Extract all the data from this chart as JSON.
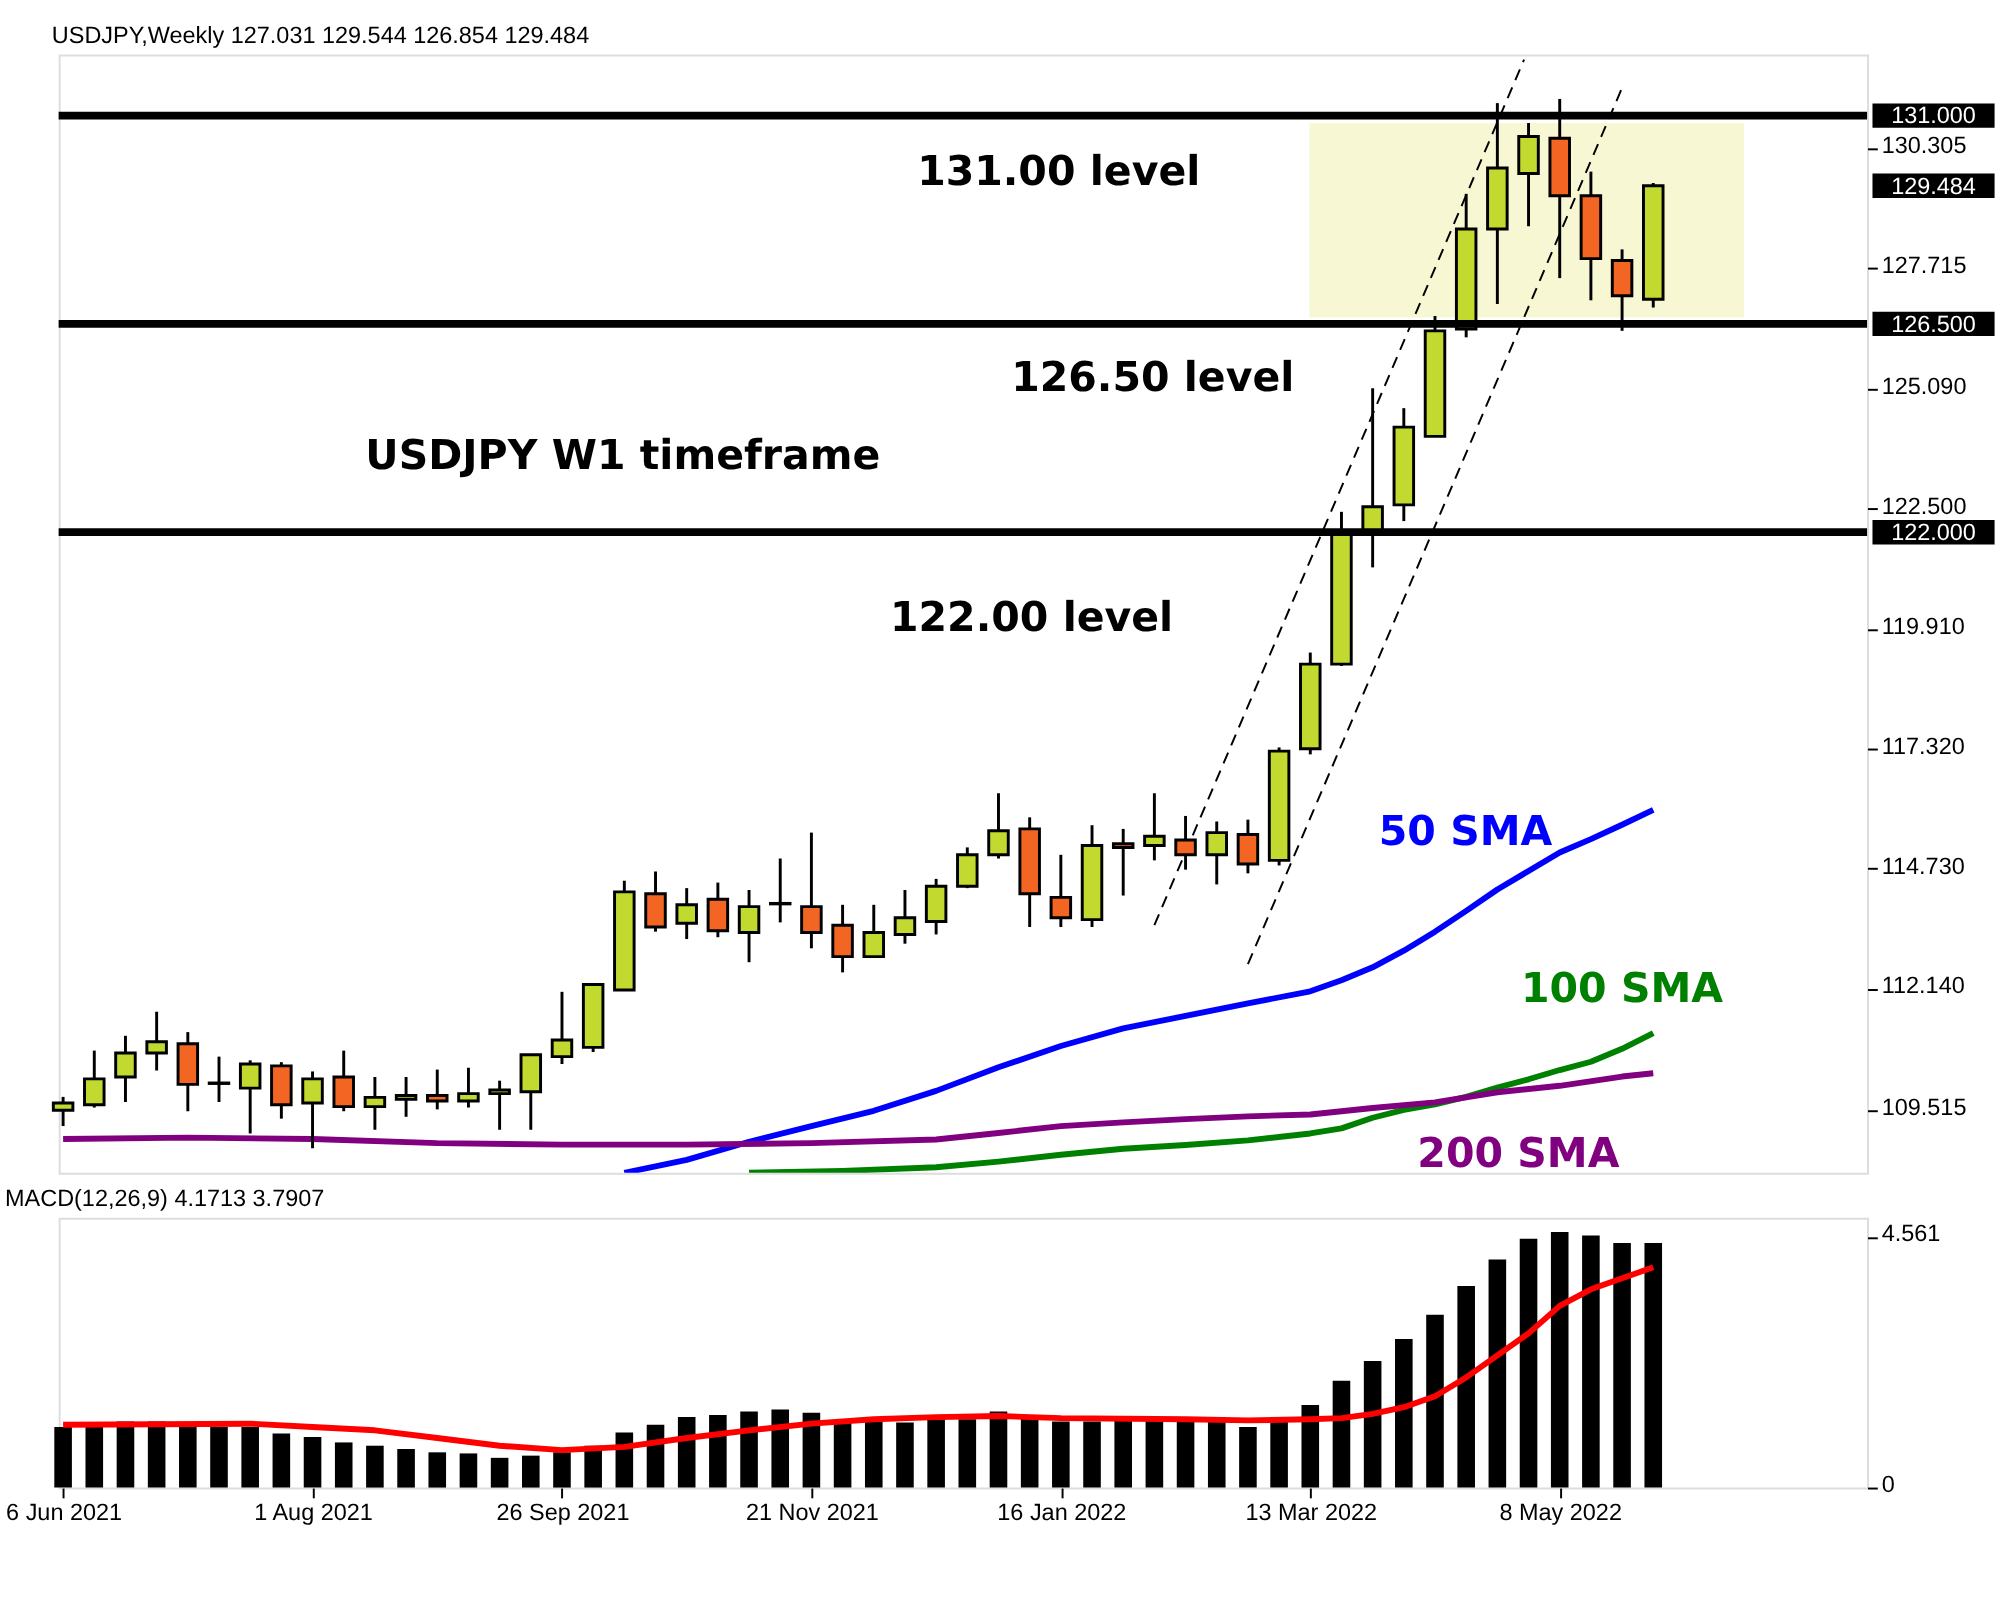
{
  "chart_data": [
    {
      "type": "candlestick",
      "title": "USDJPY,Weekly  127.031 129.544 126.854 129.484",
      "x": [
        "2021-06-06",
        "2021-06-13",
        "2021-06-20",
        "2021-06-27",
        "2021-07-04",
        "2021-07-11",
        "2021-07-18",
        "2021-07-25",
        "2021-08-01",
        "2021-08-08",
        "2021-08-15",
        "2021-08-22",
        "2021-08-29",
        "2021-09-05",
        "2021-09-12",
        "2021-09-19",
        "2021-09-26",
        "2021-10-03",
        "2021-10-10",
        "2021-10-17",
        "2021-10-24",
        "2021-10-31",
        "2021-11-07",
        "2021-11-14",
        "2021-11-21",
        "2021-11-28",
        "2021-12-05",
        "2021-12-12",
        "2021-12-19",
        "2021-12-26",
        "2022-01-02",
        "2022-01-09",
        "2022-01-16",
        "2022-01-23",
        "2022-01-30",
        "2022-02-06",
        "2022-02-13",
        "2022-02-20",
        "2022-02-27",
        "2022-03-06",
        "2022-03-13",
        "2022-03-20",
        "2022-03-27",
        "2022-04-03",
        "2022-04-10",
        "2022-04-17",
        "2022-04-24",
        "2022-05-01",
        "2022-05-08",
        "2022-05-15",
        "2022-05-22",
        "2022-05-29"
      ],
      "ohlc": [
        [
          109.51,
          109.8,
          109.17,
          109.67
        ],
        [
          109.63,
          110.8,
          109.57,
          110.19
        ],
        [
          110.23,
          111.12,
          109.69,
          110.75
        ],
        [
          110.75,
          111.64,
          110.37,
          110.99
        ],
        [
          110.95,
          111.2,
          109.49,
          110.07
        ],
        [
          110.09,
          110.67,
          109.69,
          110.1
        ],
        [
          109.99,
          110.59,
          109.01,
          110.51
        ],
        [
          110.47,
          110.55,
          109.33,
          109.63
        ],
        [
          109.67,
          110.35,
          108.69,
          110.19
        ],
        [
          110.23,
          110.8,
          109.49,
          109.59
        ],
        [
          109.59,
          110.23,
          109.09,
          109.79
        ],
        [
          109.75,
          110.23,
          109.37,
          109.83
        ],
        [
          109.83,
          110.39,
          109.53,
          109.71
        ],
        [
          109.71,
          110.43,
          109.57,
          109.87
        ],
        [
          109.87,
          110.15,
          109.09,
          109.95
        ],
        [
          109.91,
          110.71,
          109.09,
          110.71
        ],
        [
          110.67,
          112.07,
          110.51,
          111.03
        ],
        [
          110.87,
          112.23,
          110.77,
          112.23
        ],
        [
          112.11,
          114.47,
          112.11,
          114.23
        ],
        [
          114.19,
          114.67,
          113.37,
          113.47
        ],
        [
          113.55,
          114.31,
          113.21,
          113.95
        ],
        [
          114.07,
          114.43,
          113.25,
          113.39
        ],
        [
          113.35,
          114.27,
          112.71,
          113.91
        ],
        [
          113.97,
          114.95,
          113.57,
          113.98
        ],
        [
          113.91,
          115.51,
          113.01,
          113.35
        ],
        [
          113.51,
          113.95,
          112.49,
          112.83
        ],
        [
          112.83,
          113.95,
          112.83,
          113.35
        ],
        [
          113.31,
          114.27,
          113.11,
          113.67
        ],
        [
          113.59,
          114.51,
          113.31,
          114.35
        ],
        [
          114.35,
          115.19,
          114.31,
          115.03
        ],
        [
          115.03,
          116.36,
          114.95,
          115.55
        ],
        [
          115.59,
          115.84,
          113.47,
          114.19
        ],
        [
          114.11,
          115.03,
          113.47,
          113.67
        ],
        [
          113.63,
          115.67,
          113.47,
          115.23
        ],
        [
          115.27,
          115.59,
          114.15,
          115.19
        ],
        [
          115.23,
          116.36,
          114.91,
          115.43
        ],
        [
          115.35,
          115.87,
          114.71,
          115.03
        ],
        [
          115.03,
          115.75,
          114.39,
          115.51
        ],
        [
          115.47,
          115.79,
          114.63,
          114.83
        ],
        [
          114.91,
          117.35,
          114.8,
          117.27
        ],
        [
          117.32,
          119.4,
          117.2,
          119.15
        ],
        [
          119.15,
          122.44,
          119.11,
          122.01
        ],
        [
          122.01,
          125.11,
          121.24,
          122.55
        ],
        [
          122.59,
          124.68,
          122.24,
          124.27
        ],
        [
          124.07,
          126.67,
          124.07,
          126.35
        ],
        [
          126.39,
          129.31,
          126.21,
          128.55
        ],
        [
          128.55,
          131.27,
          126.93,
          129.87
        ],
        [
          129.75,
          130.84,
          128.61,
          130.55
        ],
        [
          130.51,
          131.36,
          127.49,
          129.27
        ],
        [
          129.27,
          129.79,
          127.01,
          127.91
        ],
        [
          127.87,
          128.11,
          126.35,
          127.11
        ],
        [
          127.031,
          129.544,
          126.854,
          129.484
        ]
      ],
      "colors": [
        "#c2d930",
        "#c2d930",
        "#c2d930",
        "#c2d930",
        "#f26522",
        "#c2d930",
        "#c2d930",
        "#f26522",
        "#c2d930",
        "#f26522",
        "#c2d930",
        "#c2d930",
        "#f26522",
        "#c2d930",
        "#c2d930",
        "#c2d930",
        "#c2d930",
        "#c2d930",
        "#c2d930",
        "#f26522",
        "#c2d930",
        "#f26522",
        "#c2d930",
        "#c2d930",
        "#f26522",
        "#f26522",
        "#c2d930",
        "#c2d930",
        "#c2d930",
        "#c2d930",
        "#c2d930",
        "#f26522",
        "#f26522",
        "#c2d930",
        "#f26522",
        "#c2d930",
        "#f26522",
        "#c2d930",
        "#f26522",
        "#c2d930",
        "#c2d930",
        "#c2d930",
        "#c2d930",
        "#c2d930",
        "#c2d930",
        "#c2d930",
        "#c2d930",
        "#c2d930",
        "#f26522",
        "#f26522",
        "#f26522",
        "#c2d930"
      ],
      "xlim": [
        "2021-06-05",
        "2022-07-16"
      ],
      "ylim": [
        108.16,
        132.32
      ],
      "yticks": [
        {
          "value": 130.305,
          "label": "130.305"
        },
        {
          "value": 127.715,
          "label": "127.715"
        },
        {
          "value": 125.09,
          "label": "125.090"
        },
        {
          "value": 122.5,
          "label": "122.500"
        },
        {
          "value": 119.91,
          "label": "119.910"
        },
        {
          "value": 117.32,
          "label": "117.320"
        },
        {
          "value": 114.73,
          "label": "114.730"
        },
        {
          "value": 112.14,
          "label": "112.140"
        },
        {
          "value": 109.515,
          "label": "109.515"
        }
      ],
      "tick_labels": "y",
      "grid": false,
      "series": [
        {
          "type": "line",
          "name": "50 SMA",
          "color": "#0000ff",
          "x": [
            "2021-10-10",
            "2021-10-24",
            "2021-11-07",
            "2021-11-21",
            "2021-12-05",
            "2021-12-19",
            "2022-01-02",
            "2022-01-16",
            "2022-01-30",
            "2022-02-13",
            "2022-02-27",
            "2022-03-13",
            "2022-03-20",
            "2022-03-27",
            "2022-04-03",
            "2022-04-10",
            "2022-04-17",
            "2022-04-24",
            "2022-05-01",
            "2022-05-08",
            "2022-05-15",
            "2022-05-22",
            "2022-05-29"
          ],
          "values": [
            108.16,
            108.44,
            108.83,
            109.17,
            109.5,
            109.93,
            110.44,
            110.9,
            111.28,
            111.55,
            111.82,
            112.08,
            112.32,
            112.6,
            112.96,
            113.37,
            113.82,
            114.28,
            114.68,
            115.08,
            115.37,
            115.68,
            116.0
          ]
        },
        {
          "type": "line",
          "name": "100 SMA",
          "color": "#008000",
          "x": [
            "2021-11-07",
            "2021-11-28",
            "2021-12-19",
            "2022-01-02",
            "2022-01-16",
            "2022-01-30",
            "2022-02-13",
            "2022-02-27",
            "2022-03-13",
            "2022-03-20",
            "2022-03-27",
            "2022-04-03",
            "2022-04-10",
            "2022-04-17",
            "2022-04-24",
            "2022-05-01",
            "2022-05-08",
            "2022-05-15",
            "2022-05-22",
            "2022-05-29"
          ],
          "values": [
            108.16,
            108.2,
            108.28,
            108.4,
            108.55,
            108.68,
            108.76,
            108.86,
            109.01,
            109.12,
            109.35,
            109.52,
            109.64,
            109.8,
            110.0,
            110.18,
            110.38,
            110.56,
            110.84,
            111.18
          ]
        },
        {
          "type": "line",
          "name": "200 SMA",
          "color": "#800080",
          "x": [
            "2021-06-06",
            "2021-07-04",
            "2021-08-01",
            "2021-08-29",
            "2021-09-26",
            "2021-10-24",
            "2021-11-21",
            "2021-12-19",
            "2022-01-02",
            "2022-01-16",
            "2022-01-30",
            "2022-02-13",
            "2022-02-27",
            "2022-03-13",
            "2022-03-27",
            "2022-04-10",
            "2022-04-24",
            "2022-05-08",
            "2022-05-22",
            "2022-05-29"
          ],
          "values": [
            108.89,
            108.92,
            108.89,
            108.8,
            108.77,
            108.77,
            108.8,
            108.88,
            109.02,
            109.17,
            109.25,
            109.32,
            109.38,
            109.42,
            109.56,
            109.68,
            109.9,
            110.04,
            110.24,
            110.31
          ]
        },
        {
          "type": "line",
          "color": "#000000",
          "line_style": "dashed",
          "x": [
            "2022-02-06",
            "2022-04-30"
          ],
          "values": [
            113.51,
            132.21
          ]
        },
        {
          "type": "line",
          "color": "#000000",
          "line_style": "dashed",
          "x": [
            "2022-02-27",
            "2022-05-22"
          ],
          "values": [
            112.67,
            131.6
          ]
        }
      ],
      "ref_lines": [
        {
          "axis": "y",
          "value": 131.0,
          "label": "131.000",
          "color": "#000000"
        },
        {
          "axis": "y",
          "value": 126.5,
          "label": "126.500",
          "color": "#000000"
        },
        {
          "axis": "y",
          "value": 122.0,
          "label": "122.000",
          "color": "#000000"
        }
      ],
      "bands": [
        {
          "axis": "y",
          "from": 126.64,
          "to": 130.84,
          "color": "#f7f7d4"
        }
      ],
      "annotations": [
        "131.00 level",
        "126.50 level",
        "USDJPY W1 timeframe",
        "122.00 level",
        "129.484"
      ]
    },
    {
      "type": "bar",
      "title": "MACD(12,26,9) 4.1713 3.7907",
      "x": [
        "2021-06-06",
        "2021-06-13",
        "2021-06-20",
        "2021-06-27",
        "2021-07-04",
        "2021-07-11",
        "2021-07-18",
        "2021-07-25",
        "2021-08-01",
        "2021-08-08",
        "2021-08-15",
        "2021-08-22",
        "2021-08-29",
        "2021-09-05",
        "2021-09-12",
        "2021-09-19",
        "2021-09-26",
        "2021-10-03",
        "2021-10-10",
        "2021-10-17",
        "2021-10-24",
        "2021-10-31",
        "2021-11-07",
        "2021-11-14",
        "2021-11-21",
        "2021-11-28",
        "2021-12-05",
        "2021-12-12",
        "2021-12-19",
        "2021-12-26",
        "2022-01-02",
        "2022-01-09",
        "2022-01-16",
        "2022-01-23",
        "2022-01-30",
        "2022-02-06",
        "2022-02-13",
        "2022-02-20",
        "2022-02-27",
        "2022-03-06",
        "2022-03-13",
        "2022-03-20",
        "2022-03-27",
        "2022-04-03",
        "2022-04-10",
        "2022-04-17",
        "2022-04-24",
        "2022-05-01",
        "2022-05-08",
        "2022-05-15",
        "2022-05-22",
        "2022-05-29"
      ],
      "xlim": [
        "2021-06-05",
        "2022-07-16"
      ],
      "xticks": [
        {
          "value": "2021-06-06",
          "label": "6 Jun 2021"
        },
        {
          "value": "2021-08-01",
          "label": "1 Aug 2021"
        },
        {
          "value": "2021-09-26",
          "label": "26 Sep 2021"
        },
        {
          "value": "2021-11-21",
          "label": "21 Nov 2021"
        },
        {
          "value": "2022-01-16",
          "label": "16 Jan 2022"
        },
        {
          "value": "2022-03-13",
          "label": "13 Mar 2022"
        },
        {
          "value": "2022-05-08",
          "label": "8 May 2022"
        }
      ],
      "ylim": [
        0,
        4.9
      ],
      "yticks": [
        0,
        4.561
      ],
      "grid": false,
      "series": [
        {
          "type": "bar",
          "color": "#000000",
          "values": [
            1.1,
            1.16,
            1.2,
            1.2,
            1.1,
            1.1,
            1.1,
            0.98,
            0.92,
            0.82,
            0.76,
            0.7,
            0.64,
            0.62,
            0.54,
            0.58,
            0.64,
            0.76,
            1.0,
            1.14,
            1.28,
            1.32,
            1.38,
            1.42,
            1.36,
            1.2,
            1.22,
            1.18,
            1.24,
            1.24,
            1.38,
            1.26,
            1.2,
            1.2,
            1.22,
            1.22,
            1.22,
            1.22,
            1.1,
            1.2,
            1.5,
            1.94,
            2.3,
            2.7,
            3.14,
            3.66,
            4.14,
            4.52,
            4.64,
            4.58,
            4.44,
            4.44
          ]
        },
        {
          "type": "line",
          "color": "#ff0000",
          "x": [
            "2021-06-06",
            "2021-07-18",
            "2021-08-01",
            "2021-08-15",
            "2021-08-29",
            "2021-09-12",
            "2021-09-26",
            "2021-10-10",
            "2021-10-24",
            "2021-11-07",
            "2021-11-21",
            "2021-12-05",
            "2021-12-19",
            "2022-01-02",
            "2022-01-16",
            "2022-02-13",
            "2022-02-27",
            "2022-03-13",
            "2022-03-20",
            "2022-03-27",
            "2022-04-03",
            "2022-04-10",
            "2022-04-17",
            "2022-04-24",
            "2022-05-01",
            "2022-05-08",
            "2022-05-15",
            "2022-05-22",
            "2022-05-29"
          ],
          "values": [
            1.14,
            1.16,
            1.1,
            1.04,
            0.9,
            0.76,
            0.68,
            0.74,
            0.9,
            1.04,
            1.16,
            1.24,
            1.28,
            1.3,
            1.26,
            1.24,
            1.22,
            1.24,
            1.26,
            1.34,
            1.46,
            1.66,
            2.0,
            2.4,
            2.8,
            3.3,
            3.6,
            3.8,
            4.0
          ]
        }
      ]
    }
  ]
}
